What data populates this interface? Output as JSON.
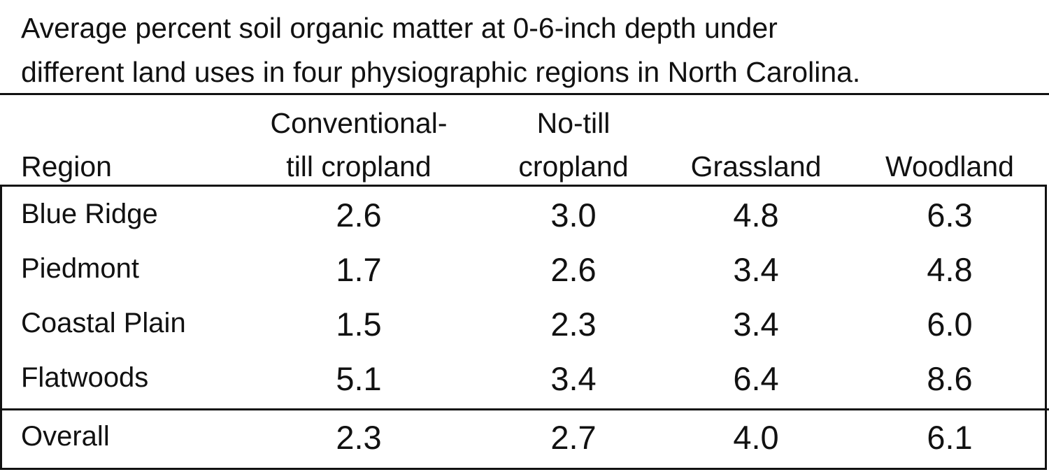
{
  "title": [
    "Average percent soil organic matter at 0-6-inch depth under",
    "different land uses in four physiographic regions in North Carolina."
  ],
  "table": {
    "header": [
      [
        "Region"
      ],
      [
        "Conventional-",
        "till cropland"
      ],
      [
        "No-till",
        "cropland"
      ],
      [
        "Grassland"
      ],
      [
        "Woodland"
      ]
    ],
    "rows": [
      [
        "Blue Ridge",
        "2.6",
        "3.0",
        "4.8",
        "6.3"
      ],
      [
        "Piedmont",
        "1.7",
        "2.6",
        "3.4",
        "4.8"
      ],
      [
        "Coastal Plain",
        "1.5",
        "2.3",
        "3.4",
        "6.0"
      ],
      [
        "Flatwoods",
        "5.1",
        "3.4",
        "6.4",
        "8.6"
      ]
    ],
    "total": [
      "Overall",
      "2.3",
      "2.7",
      "4.0",
      "6.1"
    ]
  }
}
